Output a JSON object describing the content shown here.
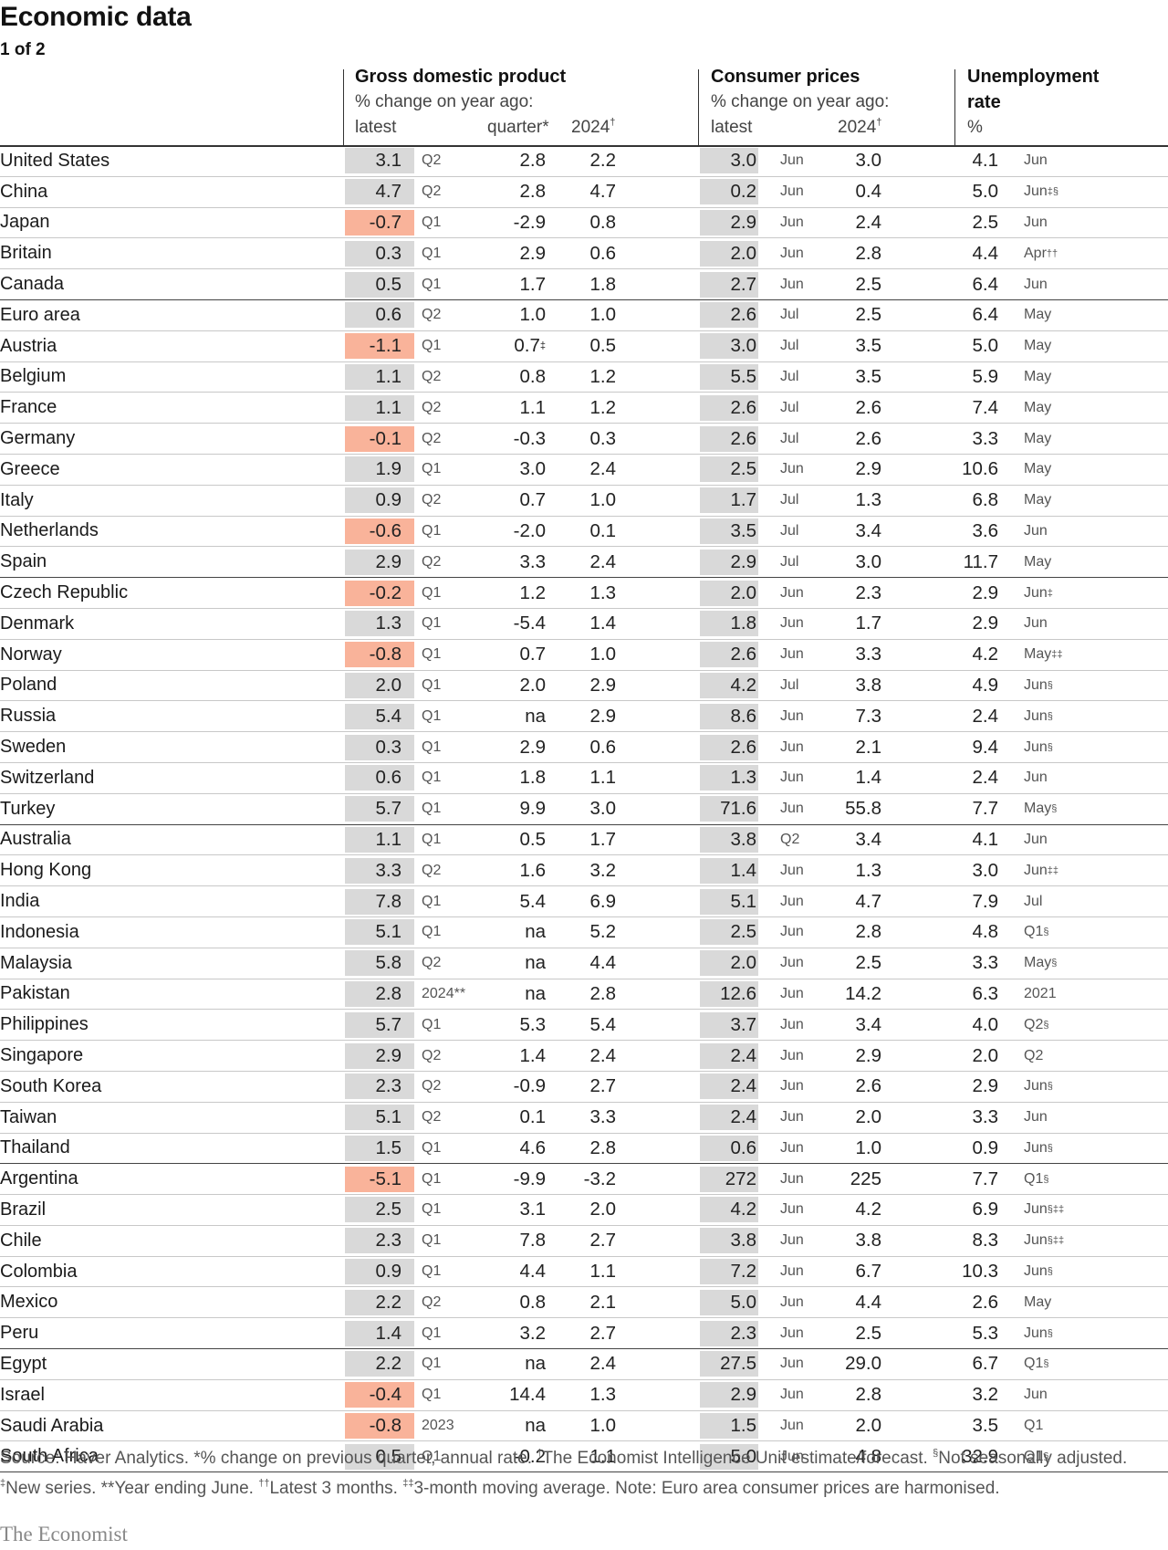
{
  "title": "Economic data",
  "subtitle": "1 of 2",
  "headers": {
    "gdp_title": "Gross domestic product",
    "gdp_sub": "% change on year ago:",
    "gdp_latest": "latest",
    "gdp_quarter": "quarter*",
    "gdp_2024": "2024",
    "gdp_2024_mark": "†",
    "cpi_title": "Consumer prices",
    "cpi_sub": "% change on year ago:",
    "cpi_latest": "latest",
    "cpi_2024": "2024",
    "cpi_2024_mark": "†",
    "unemp_title1": "Unemployment",
    "unemp_title2": "rate",
    "unemp_unit": "%"
  },
  "colors": {
    "negative_highlight": "#f9b39a",
    "value_box": "#d9d9d9"
  },
  "rows": [
    {
      "country": "United States",
      "gdp_latest": "3.1",
      "gdp_period": "Q2",
      "gdp_quarter": "2.8",
      "gdp_quarter_mark": "",
      "gdp_2024": "2.2",
      "cpi_latest": "3.0",
      "cpi_period": "Jun",
      "cpi_2024": "3.0",
      "unemp": "4.1",
      "unemp_period": "Jun",
      "unemp_mark": "",
      "negative": false,
      "group_end": false
    },
    {
      "country": "China",
      "gdp_latest": "4.7",
      "gdp_period": "Q2",
      "gdp_quarter": "2.8",
      "gdp_quarter_mark": "",
      "gdp_2024": "4.7",
      "cpi_latest": "0.2",
      "cpi_period": "Jun",
      "cpi_2024": "0.4",
      "unemp": "5.0",
      "unemp_period": "Jun",
      "unemp_mark": "‡§",
      "negative": false,
      "group_end": false
    },
    {
      "country": "Japan",
      "gdp_latest": "-0.7",
      "gdp_period": "Q1",
      "gdp_quarter": "-2.9",
      "gdp_quarter_mark": "",
      "gdp_2024": "0.8",
      "cpi_latest": "2.9",
      "cpi_period": "Jun",
      "cpi_2024": "2.4",
      "unemp": "2.5",
      "unemp_period": "Jun",
      "unemp_mark": "",
      "negative": true,
      "group_end": false
    },
    {
      "country": "Britain",
      "gdp_latest": "0.3",
      "gdp_period": "Q1",
      "gdp_quarter": "2.9",
      "gdp_quarter_mark": "",
      "gdp_2024": "0.6",
      "cpi_latest": "2.0",
      "cpi_period": "Jun",
      "cpi_2024": "2.8",
      "unemp": "4.4",
      "unemp_period": "Apr",
      "unemp_mark": "††",
      "negative": false,
      "group_end": false
    },
    {
      "country": "Canada",
      "gdp_latest": "0.5",
      "gdp_period": "Q1",
      "gdp_quarter": "1.7",
      "gdp_quarter_mark": "",
      "gdp_2024": "1.8",
      "cpi_latest": "2.7",
      "cpi_period": "Jun",
      "cpi_2024": "2.5",
      "unemp": "6.4",
      "unemp_period": "Jun",
      "unemp_mark": "",
      "negative": false,
      "group_end": true
    },
    {
      "country": "Euro area",
      "gdp_latest": "0.6",
      "gdp_period": "Q2",
      "gdp_quarter": "1.0",
      "gdp_quarter_mark": "",
      "gdp_2024": "1.0",
      "cpi_latest": "2.6",
      "cpi_period": "Jul",
      "cpi_2024": "2.5",
      "unemp": "6.4",
      "unemp_period": "May",
      "unemp_mark": "",
      "negative": false,
      "group_end": false
    },
    {
      "country": "Austria",
      "gdp_latest": "-1.1",
      "gdp_period": "Q1",
      "gdp_quarter": "0.7",
      "gdp_quarter_mark": "‡",
      "gdp_2024": "0.5",
      "cpi_latest": "3.0",
      "cpi_period": "Jul",
      "cpi_2024": "3.5",
      "unemp": "5.0",
      "unemp_period": "May",
      "unemp_mark": "",
      "negative": true,
      "group_end": false
    },
    {
      "country": "Belgium",
      "gdp_latest": "1.1",
      "gdp_period": "Q2",
      "gdp_quarter": "0.8",
      "gdp_quarter_mark": "",
      "gdp_2024": "1.2",
      "cpi_latest": "5.5",
      "cpi_period": "Jul",
      "cpi_2024": "3.5",
      "unemp": "5.9",
      "unemp_period": "May",
      "unemp_mark": "",
      "negative": false,
      "group_end": false
    },
    {
      "country": "France",
      "gdp_latest": "1.1",
      "gdp_period": "Q2",
      "gdp_quarter": "1.1",
      "gdp_quarter_mark": "",
      "gdp_2024": "1.2",
      "cpi_latest": "2.6",
      "cpi_period": "Jul",
      "cpi_2024": "2.6",
      "unemp": "7.4",
      "unemp_period": "May",
      "unemp_mark": "",
      "negative": false,
      "group_end": false
    },
    {
      "country": "Germany",
      "gdp_latest": "-0.1",
      "gdp_period": "Q2",
      "gdp_quarter": "-0.3",
      "gdp_quarter_mark": "",
      "gdp_2024": "0.3",
      "cpi_latest": "2.6",
      "cpi_period": "Jul",
      "cpi_2024": "2.6",
      "unemp": "3.3",
      "unemp_period": "May",
      "unemp_mark": "",
      "negative": true,
      "group_end": false
    },
    {
      "country": "Greece",
      "gdp_latest": "1.9",
      "gdp_period": "Q1",
      "gdp_quarter": "3.0",
      "gdp_quarter_mark": "",
      "gdp_2024": "2.4",
      "cpi_latest": "2.5",
      "cpi_period": "Jun",
      "cpi_2024": "2.9",
      "unemp": "10.6",
      "unemp_period": "May",
      "unemp_mark": "",
      "negative": false,
      "group_end": false
    },
    {
      "country": "Italy",
      "gdp_latest": "0.9",
      "gdp_period": "Q2",
      "gdp_quarter": "0.7",
      "gdp_quarter_mark": "",
      "gdp_2024": "1.0",
      "cpi_latest": "1.7",
      "cpi_period": "Jul",
      "cpi_2024": "1.3",
      "unemp": "6.8",
      "unemp_period": "May",
      "unemp_mark": "",
      "negative": false,
      "group_end": false
    },
    {
      "country": "Netherlands",
      "gdp_latest": "-0.6",
      "gdp_period": "Q1",
      "gdp_quarter": "-2.0",
      "gdp_quarter_mark": "",
      "gdp_2024": "0.1",
      "cpi_latest": "3.5",
      "cpi_period": "Jul",
      "cpi_2024": "3.4",
      "unemp": "3.6",
      "unemp_period": "Jun",
      "unemp_mark": "",
      "negative": true,
      "group_end": false
    },
    {
      "country": "Spain",
      "gdp_latest": "2.9",
      "gdp_period": "Q2",
      "gdp_quarter": "3.3",
      "gdp_quarter_mark": "",
      "gdp_2024": "2.4",
      "cpi_latest": "2.9",
      "cpi_period": "Jul",
      "cpi_2024": "3.0",
      "unemp": "11.7",
      "unemp_period": "May",
      "unemp_mark": "",
      "negative": false,
      "group_end": true
    },
    {
      "country": "Czech Republic",
      "gdp_latest": "-0.2",
      "gdp_period": "Q1",
      "gdp_quarter": "1.2",
      "gdp_quarter_mark": "",
      "gdp_2024": "1.3",
      "cpi_latest": "2.0",
      "cpi_period": "Jun",
      "cpi_2024": "2.3",
      "unemp": "2.9",
      "unemp_period": "Jun",
      "unemp_mark": "‡",
      "negative": true,
      "group_end": false
    },
    {
      "country": "Denmark",
      "gdp_latest": "1.3",
      "gdp_period": "Q1",
      "gdp_quarter": "-5.4",
      "gdp_quarter_mark": "",
      "gdp_2024": "1.4",
      "cpi_latest": "1.8",
      "cpi_period": "Jun",
      "cpi_2024": "1.7",
      "unemp": "2.9",
      "unemp_period": "Jun",
      "unemp_mark": "",
      "negative": false,
      "group_end": false
    },
    {
      "country": "Norway",
      "gdp_latest": "-0.8",
      "gdp_period": "Q1",
      "gdp_quarter": "0.7",
      "gdp_quarter_mark": "",
      "gdp_2024": "1.0",
      "cpi_latest": "2.6",
      "cpi_period": "Jun",
      "cpi_2024": "3.3",
      "unemp": "4.2",
      "unemp_period": "May",
      "unemp_mark": "‡‡",
      "negative": true,
      "group_end": false
    },
    {
      "country": "Poland",
      "gdp_latest": "2.0",
      "gdp_period": "Q1",
      "gdp_quarter": "2.0",
      "gdp_quarter_mark": "",
      "gdp_2024": "2.9",
      "cpi_latest": "4.2",
      "cpi_period": "Jul",
      "cpi_2024": "3.8",
      "unemp": "4.9",
      "unemp_period": "Jun",
      "unemp_mark": "§",
      "negative": false,
      "group_end": false
    },
    {
      "country": "Russia",
      "gdp_latest": "5.4",
      "gdp_period": "Q1",
      "gdp_quarter": "na",
      "gdp_quarter_mark": "",
      "gdp_2024": "2.9",
      "cpi_latest": "8.6",
      "cpi_period": "Jun",
      "cpi_2024": "7.3",
      "unemp": "2.4",
      "unemp_period": "Jun",
      "unemp_mark": "§",
      "negative": false,
      "group_end": false
    },
    {
      "country": "Sweden",
      "gdp_latest": "0.3",
      "gdp_period": "Q1",
      "gdp_quarter": "2.9",
      "gdp_quarter_mark": "",
      "gdp_2024": "0.6",
      "cpi_latest": "2.6",
      "cpi_period": "Jun",
      "cpi_2024": "2.1",
      "unemp": "9.4",
      "unemp_period": "Jun",
      "unemp_mark": "§",
      "negative": false,
      "group_end": false
    },
    {
      "country": "Switzerland",
      "gdp_latest": "0.6",
      "gdp_period": "Q1",
      "gdp_quarter": "1.8",
      "gdp_quarter_mark": "",
      "gdp_2024": "1.1",
      "cpi_latest": "1.3",
      "cpi_period": "Jun",
      "cpi_2024": "1.4",
      "unemp": "2.4",
      "unemp_period": "Jun",
      "unemp_mark": "",
      "negative": false,
      "group_end": false
    },
    {
      "country": "Turkey",
      "gdp_latest": "5.7",
      "gdp_period": "Q1",
      "gdp_quarter": "9.9",
      "gdp_quarter_mark": "",
      "gdp_2024": "3.0",
      "cpi_latest": "71.6",
      "cpi_period": "Jun",
      "cpi_2024": "55.8",
      "unemp": "7.7",
      "unemp_period": "May",
      "unemp_mark": "§",
      "negative": false,
      "group_end": true
    },
    {
      "country": "Australia",
      "gdp_latest": "1.1",
      "gdp_period": "Q1",
      "gdp_quarter": "0.5",
      "gdp_quarter_mark": "",
      "gdp_2024": "1.7",
      "cpi_latest": "3.8",
      "cpi_period": "Q2",
      "cpi_2024": "3.4",
      "unemp": "4.1",
      "unemp_period": "Jun",
      "unemp_mark": "",
      "negative": false,
      "group_end": false
    },
    {
      "country": "Hong Kong",
      "gdp_latest": "3.3",
      "gdp_period": "Q2",
      "gdp_quarter": "1.6",
      "gdp_quarter_mark": "",
      "gdp_2024": "3.2",
      "cpi_latest": "1.4",
      "cpi_period": "Jun",
      "cpi_2024": "1.3",
      "unemp": "3.0",
      "unemp_period": "Jun",
      "unemp_mark": "‡‡",
      "negative": false,
      "group_end": false
    },
    {
      "country": "India",
      "gdp_latest": "7.8",
      "gdp_period": "Q1",
      "gdp_quarter": "5.4",
      "gdp_quarter_mark": "",
      "gdp_2024": "6.9",
      "cpi_latest": "5.1",
      "cpi_period": "Jun",
      "cpi_2024": "4.7",
      "unemp": "7.9",
      "unemp_period": "Jul",
      "unemp_mark": "",
      "negative": false,
      "group_end": false
    },
    {
      "country": "Indonesia",
      "gdp_latest": "5.1",
      "gdp_period": "Q1",
      "gdp_quarter": "na",
      "gdp_quarter_mark": "",
      "gdp_2024": "5.2",
      "cpi_latest": "2.5",
      "cpi_period": "Jun",
      "cpi_2024": "2.8",
      "unemp": "4.8",
      "unemp_period": "Q1",
      "unemp_mark": "§",
      "negative": false,
      "group_end": false
    },
    {
      "country": "Malaysia",
      "gdp_latest": "5.8",
      "gdp_period": "Q2",
      "gdp_quarter": "na",
      "gdp_quarter_mark": "",
      "gdp_2024": "4.4",
      "cpi_latest": "2.0",
      "cpi_period": "Jun",
      "cpi_2024": "2.5",
      "unemp": "3.3",
      "unemp_period": "May",
      "unemp_mark": "§",
      "negative": false,
      "group_end": false
    },
    {
      "country": "Pakistan",
      "gdp_latest": "2.8",
      "gdp_period": "2024**",
      "gdp_quarter": "na",
      "gdp_quarter_mark": "",
      "gdp_2024": "2.8",
      "cpi_latest": "12.6",
      "cpi_period": "Jun",
      "cpi_2024": "14.2",
      "unemp": "6.3",
      "unemp_period": "2021",
      "unemp_mark": "",
      "negative": false,
      "group_end": false
    },
    {
      "country": "Philippines",
      "gdp_latest": "5.7",
      "gdp_period": "Q1",
      "gdp_quarter": "5.3",
      "gdp_quarter_mark": "",
      "gdp_2024": "5.4",
      "cpi_latest": "3.7",
      "cpi_period": "Jun",
      "cpi_2024": "3.4",
      "unemp": "4.0",
      "unemp_period": "Q2",
      "unemp_mark": "§",
      "negative": false,
      "group_end": false
    },
    {
      "country": "Singapore",
      "gdp_latest": "2.9",
      "gdp_period": "Q2",
      "gdp_quarter": "1.4",
      "gdp_quarter_mark": "",
      "gdp_2024": "2.4",
      "cpi_latest": "2.4",
      "cpi_period": "Jun",
      "cpi_2024": "2.9",
      "unemp": "2.0",
      "unemp_period": "Q2",
      "unemp_mark": "",
      "negative": false,
      "group_end": false
    },
    {
      "country": "South Korea",
      "gdp_latest": "2.3",
      "gdp_period": "Q2",
      "gdp_quarter": "-0.9",
      "gdp_quarter_mark": "",
      "gdp_2024": "2.7",
      "cpi_latest": "2.4",
      "cpi_period": "Jun",
      "cpi_2024": "2.6",
      "unemp": "2.9",
      "unemp_period": "Jun",
      "unemp_mark": "§",
      "negative": false,
      "group_end": false
    },
    {
      "country": "Taiwan",
      "gdp_latest": "5.1",
      "gdp_period": "Q2",
      "gdp_quarter": "0.1",
      "gdp_quarter_mark": "",
      "gdp_2024": "3.3",
      "cpi_latest": "2.4",
      "cpi_period": "Jun",
      "cpi_2024": "2.0",
      "unemp": "3.3",
      "unemp_period": "Jun",
      "unemp_mark": "",
      "negative": false,
      "group_end": false
    },
    {
      "country": "Thailand",
      "gdp_latest": "1.5",
      "gdp_period": "Q1",
      "gdp_quarter": "4.6",
      "gdp_quarter_mark": "",
      "gdp_2024": "2.8",
      "cpi_latest": "0.6",
      "cpi_period": "Jun",
      "cpi_2024": "1.0",
      "unemp": "0.9",
      "unemp_period": "Jun",
      "unemp_mark": "§",
      "negative": false,
      "group_end": true
    },
    {
      "country": "Argentina",
      "gdp_latest": "-5.1",
      "gdp_period": "Q1",
      "gdp_quarter": "-9.9",
      "gdp_quarter_mark": "",
      "gdp_2024": "-3.2",
      "cpi_latest": "272",
      "cpi_period": "Jun",
      "cpi_2024": "225",
      "unemp": "7.7",
      "unemp_period": "Q1",
      "unemp_mark": "§",
      "negative": true,
      "group_end": false
    },
    {
      "country": "Brazil",
      "gdp_latest": "2.5",
      "gdp_period": "Q1",
      "gdp_quarter": "3.1",
      "gdp_quarter_mark": "",
      "gdp_2024": "2.0",
      "cpi_latest": "4.2",
      "cpi_period": "Jun",
      "cpi_2024": "4.2",
      "unemp": "6.9",
      "unemp_period": "Jun",
      "unemp_mark": "§‡‡",
      "negative": false,
      "group_end": false
    },
    {
      "country": "Chile",
      "gdp_latest": "2.3",
      "gdp_period": "Q1",
      "gdp_quarter": "7.8",
      "gdp_quarter_mark": "",
      "gdp_2024": "2.7",
      "cpi_latest": "3.8",
      "cpi_period": "Jun",
      "cpi_2024": "3.8",
      "unemp": "8.3",
      "unemp_period": "Jun",
      "unemp_mark": "§‡‡",
      "negative": false,
      "group_end": false
    },
    {
      "country": "Colombia",
      "gdp_latest": "0.9",
      "gdp_period": "Q1",
      "gdp_quarter": "4.4",
      "gdp_quarter_mark": "",
      "gdp_2024": "1.1",
      "cpi_latest": "7.2",
      "cpi_period": "Jun",
      "cpi_2024": "6.7",
      "unemp": "10.3",
      "unemp_period": "Jun",
      "unemp_mark": "§",
      "negative": false,
      "group_end": false
    },
    {
      "country": "Mexico",
      "gdp_latest": "2.2",
      "gdp_period": "Q2",
      "gdp_quarter": "0.8",
      "gdp_quarter_mark": "",
      "gdp_2024": "2.1",
      "cpi_latest": "5.0",
      "cpi_period": "Jun",
      "cpi_2024": "4.4",
      "unemp": "2.6",
      "unemp_period": "May",
      "unemp_mark": "",
      "negative": false,
      "group_end": false
    },
    {
      "country": "Peru",
      "gdp_latest": "1.4",
      "gdp_period": "Q1",
      "gdp_quarter": "3.2",
      "gdp_quarter_mark": "",
      "gdp_2024": "2.7",
      "cpi_latest": "2.3",
      "cpi_period": "Jun",
      "cpi_2024": "2.5",
      "unemp": "5.3",
      "unemp_period": "Jun",
      "unemp_mark": "§",
      "negative": false,
      "group_end": true
    },
    {
      "country": "Egypt",
      "gdp_latest": "2.2",
      "gdp_period": "Q1",
      "gdp_quarter": "na",
      "gdp_quarter_mark": "",
      "gdp_2024": "2.4",
      "cpi_latest": "27.5",
      "cpi_period": "Jun",
      "cpi_2024": "29.0",
      "unemp": "6.7",
      "unemp_period": "Q1",
      "unemp_mark": "§",
      "negative": false,
      "group_end": false
    },
    {
      "country": "Israel",
      "gdp_latest": "-0.4",
      "gdp_period": "Q1",
      "gdp_quarter": "14.4",
      "gdp_quarter_mark": "",
      "gdp_2024": "1.3",
      "cpi_latest": "2.9",
      "cpi_period": "Jun",
      "cpi_2024": "2.8",
      "unemp": "3.2",
      "unemp_period": "Jun",
      "unemp_mark": "",
      "negative": true,
      "group_end": false
    },
    {
      "country": "Saudi Arabia",
      "gdp_latest": "-0.8",
      "gdp_period": "2023",
      "gdp_quarter": "na",
      "gdp_quarter_mark": "",
      "gdp_2024": "1.0",
      "cpi_latest": "1.5",
      "cpi_period": "Jun",
      "cpi_2024": "2.0",
      "unemp": "3.5",
      "unemp_period": "Q1",
      "unemp_mark": "",
      "negative": true,
      "group_end": false
    },
    {
      "country": "South Africa",
      "gdp_latest": "0.5",
      "gdp_period": "Q1",
      "gdp_quarter": "-0.2",
      "gdp_quarter_mark": "",
      "gdp_2024": "1.1",
      "cpi_latest": "5.0",
      "cpi_period": "Jun",
      "cpi_2024": "4.8",
      "unemp": "32.9",
      "unemp_period": "Q1",
      "unemp_mark": "§",
      "negative": false,
      "group_end": false
    }
  ],
  "footnotes": {
    "line1_a": "Source: Haver Analytics.  *% change on previous quarter, annual rate. ",
    "line1_b_mark": "†",
    "line1_b": "The Economist Intelligence Unit estimate/forecast. ",
    "line1_c_mark": "§",
    "line1_c": "Not seasonally adjusted.",
    "line2_a_mark": "‡",
    "line2_a": "New series. **Year ending June. ",
    "line2_b_mark": "††",
    "line2_b": "Latest 3 months. ",
    "line2_c_mark": "‡‡",
    "line2_c": "3-month moving average. Note: Euro area consumer prices are harmonised."
  },
  "brand": "The Economist"
}
